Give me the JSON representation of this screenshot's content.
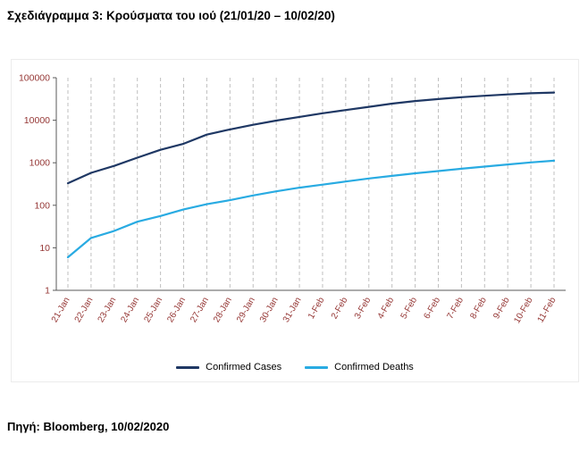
{
  "title": "Σχεδιάγραμμα 3: Κρούσματα του ιού (21/01/20 – 10/02/20)",
  "source": "Πηγή: Bloomberg, 10/02/2020",
  "chart_data": {
    "type": "line",
    "x": [
      "21-Jan",
      "22-Jan",
      "23-Jan",
      "24-Jan",
      "25-Jan",
      "26-Jan",
      "27-Jan",
      "28-Jan",
      "29-Jan",
      "30-Jan",
      "31-Jan",
      "1-Feb",
      "2-Feb",
      "3-Feb",
      "4-Feb",
      "5-Feb",
      "6-Feb",
      "7-Feb",
      "8-Feb",
      "9-Feb",
      "10-Feb",
      "11-Feb"
    ],
    "yscale": "log",
    "ylim": [
      1,
      100000
    ],
    "y_ticks": [
      1,
      10,
      100,
      1000,
      10000,
      100000
    ],
    "grid": "vertical-dashed",
    "legend_position": "bottom",
    "series": [
      {
        "name": "Confirmed Cases",
        "color": "#1f3864",
        "values": [
          330,
          580,
          845,
          1320,
          2015,
          2800,
          4590,
          6065,
          7820,
          9825,
          11950,
          14555,
          17390,
          20630,
          24545,
          28275,
          31480,
          34885,
          37560,
          40555,
          43100,
          44730
        ]
      },
      {
        "name": "Confirmed Deaths",
        "color": "#29abe2",
        "values": [
          6,
          17,
          25,
          41,
          56,
          80,
          106,
          132,
          170,
          213,
          259,
          305,
          362,
          426,
          492,
          564,
          638,
          724,
          813,
          910,
          1018,
          1115
        ]
      }
    ],
    "colors": {
      "grid": "#bfbfbf",
      "axis_labels": "#953735",
      "axis_line": "#595959"
    }
  }
}
